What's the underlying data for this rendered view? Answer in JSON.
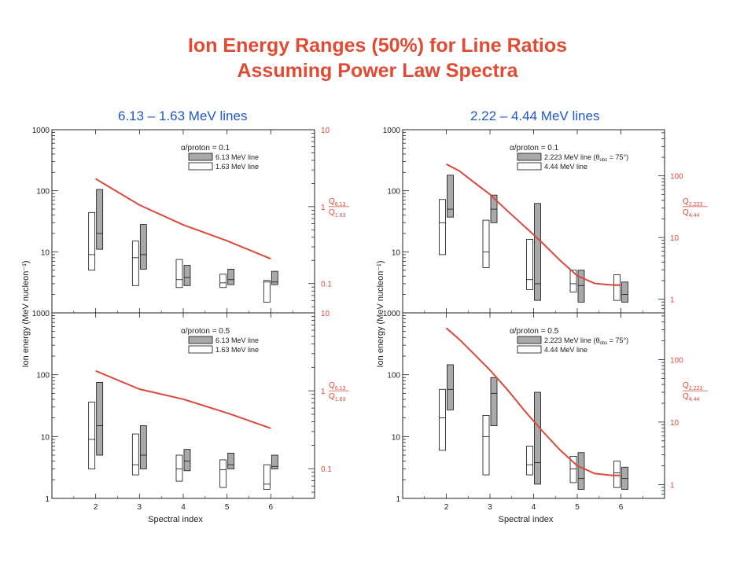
{
  "title_line1": "Ion Energy Ranges (50%) for Line Ratios",
  "title_line2": "Assuming Power Law Spectra",
  "colors": {
    "title": "#e24a33",
    "panel_title": "#1f56c9",
    "curve": "#d94a3a",
    "filled_bar": "#a9a9a9",
    "axis": "#222222"
  },
  "chart_data": [
    {
      "panel_title": "6.13 – 1.63 MeV lines",
      "type": "bar",
      "subplots": [
        {
          "ratio_label": "α/proton = 0.1",
          "legend": [
            {
              "name": "6.13 MeV line",
              "fill": "gray"
            },
            {
              "name": "1.63 MeV line",
              "fill": "white"
            }
          ],
          "right_axis": {
            "ticks": [
              0.1,
              1,
              10
            ],
            "tick_labels": [
              "0.1",
              "1",
              "10"
            ],
            "range": [
              0.0416,
              10
            ],
            "label_num": "Q",
            "num_sub": "6.13",
            "label_den": "Q",
            "den_sub": "1.63"
          },
          "boxes": [
            {
              "x": 2,
              "open": [
                5,
                9,
                44
              ],
              "filled": [
                11,
                20,
                105
              ]
            },
            {
              "x": 3,
              "open": [
                2.8,
                8,
                15
              ],
              "filled": [
                5.2,
                9,
                28
              ]
            },
            {
              "x": 4,
              "open": [
                2.6,
                3.5,
                7.5
              ],
              "filled": [
                2.8,
                3.8,
                6
              ]
            },
            {
              "x": 5,
              "open": [
                2.6,
                3.1,
                4.3
              ],
              "filled": [
                2.9,
                3.5,
                5.2
              ]
            },
            {
              "x": 6,
              "open": [
                1.5,
                3.2,
                3.4
              ],
              "filled": [
                2.9,
                3.2,
                4.8
              ]
            }
          ],
          "curve": {
            "x": [
              2,
              3,
              4,
              5,
              6
            ],
            "y": [
              2.3,
              1.05,
              0.58,
              0.36,
              0.21
            ]
          }
        },
        {
          "ratio_label": "α/proton = 0.5",
          "legend": [
            {
              "name": "6.13 MeV line",
              "fill": "gray"
            },
            {
              "name": "1.63 MeV line",
              "fill": "white"
            }
          ],
          "right_axis": {
            "ticks": [
              0.1,
              1,
              10
            ],
            "tick_labels": [
              "0.1",
              "1",
              "10"
            ],
            "range": [
              0.0416,
              10
            ],
            "label_num": "Q",
            "num_sub": "6.13",
            "label_den": "Q",
            "den_sub": "1.63"
          },
          "boxes": [
            {
              "x": 2,
              "open": [
                3,
                9,
                36
              ],
              "filled": [
                5,
                15,
                75
              ]
            },
            {
              "x": 3,
              "open": [
                2.4,
                3.5,
                11
              ],
              "filled": [
                3,
                5,
                15
              ]
            },
            {
              "x": 4,
              "open": [
                1.9,
                3,
                5
              ],
              "filled": [
                2.8,
                4,
                6.2
              ]
            },
            {
              "x": 5,
              "open": [
                1.5,
                2.9,
                4.2
              ],
              "filled": [
                3,
                3.5,
                5.4
              ]
            },
            {
              "x": 6,
              "open": [
                1.4,
                1.7,
                3.5
              ],
              "filled": [
                3,
                3.3,
                5
              ]
            }
          ],
          "curve": {
            "x": [
              2,
              3,
              4,
              5,
              6
            ],
            "y": [
              1.8,
              1.05,
              0.78,
              0.52,
              0.33
            ]
          }
        }
      ],
      "x_ticks": [
        2,
        3,
        4,
        5,
        6
      ],
      "xlim": [
        1,
        7
      ],
      "xlabel": "Spectral index",
      "ylabel": "Ion energy (MeV nucleon⁻¹)",
      "ylim": [
        1,
        1000
      ],
      "y_ticks": [
        1,
        10,
        100,
        1000
      ],
      "y_tick_labels": [
        "1",
        "10",
        "100",
        "1000"
      ]
    },
    {
      "panel_title": "2.22 – 4.44 MeV lines",
      "type": "bar",
      "subplots": [
        {
          "ratio_label": "α/proton = 0.1",
          "legend": [
            {
              "name": "2.223 MeV line (θ",
              "sub": "obs",
              "suffix": " = 75°)",
              "fill": "gray"
            },
            {
              "name": "4.44 MeV line",
              "fill": "white"
            }
          ],
          "right_axis": {
            "ticks": [
              1,
              10,
              100
            ],
            "tick_labels": [
              "1",
              "10",
              "100"
            ],
            "range": [
              0.6,
              560
            ],
            "label_num": "Q",
            "num_sub": "2.223",
            "label_den": "Q",
            "den_sub": "4.44"
          },
          "boxes": [
            {
              "x": 2,
              "open": [
                9,
                30,
                72
              ],
              "filled": [
                37,
                50,
                180
              ]
            },
            {
              "x": 3,
              "open": [
                5.5,
                10,
                33
              ],
              "filled": [
                30,
                50,
                85
              ]
            },
            {
              "x": 4,
              "open": [
                2.4,
                3.5,
                16
              ],
              "filled": [
                1.6,
                3,
                62
              ]
            },
            {
              "x": 5,
              "open": [
                2.2,
                3,
                5
              ],
              "filled": [
                1.5,
                2.8,
                5
              ]
            },
            {
              "x": 6,
              "open": [
                1.6,
                2.8,
                4.2
              ],
              "filled": [
                1.5,
                2,
                3.2
              ]
            }
          ],
          "curve": {
            "x": [
              2,
              2.3,
              2.6,
              3,
              3.4,
              3.8,
              4.2,
              4.6,
              5,
              5.4,
              5.8,
              6
            ],
            "y": [
              155,
              120,
              82,
              50,
              27,
              15,
              8.2,
              4.3,
              2.4,
              1.8,
              1.7,
              1.7
            ]
          }
        },
        {
          "ratio_label": "α/proton = 0.5",
          "legend": [
            {
              "name": "2.223 MeV line (θ",
              "sub": "obs",
              "suffix": " = 75°)",
              "fill": "gray"
            },
            {
              "name": "4.44 MeV line",
              "fill": "white"
            }
          ],
          "right_axis": {
            "ticks": [
              1,
              10,
              100
            ],
            "tick_labels": [
              "1",
              "10",
              "100"
            ],
            "range": [
              0.6,
              560
            ],
            "label_num": "Q",
            "num_sub": "2.223",
            "label_den": "Q",
            "den_sub": "4.44"
          },
          "boxes": [
            {
              "x": 2,
              "open": [
                6,
                20,
                58
              ],
              "filled": [
                27,
                58,
                145
              ]
            },
            {
              "x": 3,
              "open": [
                2.4,
                10,
                22
              ],
              "filled": [
                15,
                50,
                90
              ]
            },
            {
              "x": 4,
              "open": [
                2.4,
                3.5,
                7
              ],
              "filled": [
                1.7,
                3.8,
                52
              ]
            },
            {
              "x": 5,
              "open": [
                1.8,
                3,
                4.8
              ],
              "filled": [
                1.4,
                2.1,
                5.5
              ]
            },
            {
              "x": 6,
              "open": [
                1.5,
                2.6,
                4
              ],
              "filled": [
                1.4,
                2.1,
                3.2
              ]
            }
          ],
          "curve": {
            "x": [
              2,
              2.3,
              2.6,
              3,
              3.4,
              3.8,
              4.2,
              4.6,
              5,
              5.4,
              5.8,
              6
            ],
            "y": [
              320,
              210,
              130,
              68,
              33,
              15,
              7.2,
              3.6,
              2,
              1.5,
              1.4,
              1.4
            ]
          }
        }
      ],
      "x_ticks": [
        2,
        3,
        4,
        5,
        6
      ],
      "xlim": [
        1,
        7
      ],
      "xlabel": "Spectral index",
      "ylabel": "Ion energy (MeV nucleon⁻¹)",
      "ylim": [
        1,
        1000
      ],
      "y_ticks": [
        1,
        10,
        100,
        1000
      ],
      "y_tick_labels": [
        "1",
        "10",
        "100",
        "1000"
      ]
    }
  ]
}
